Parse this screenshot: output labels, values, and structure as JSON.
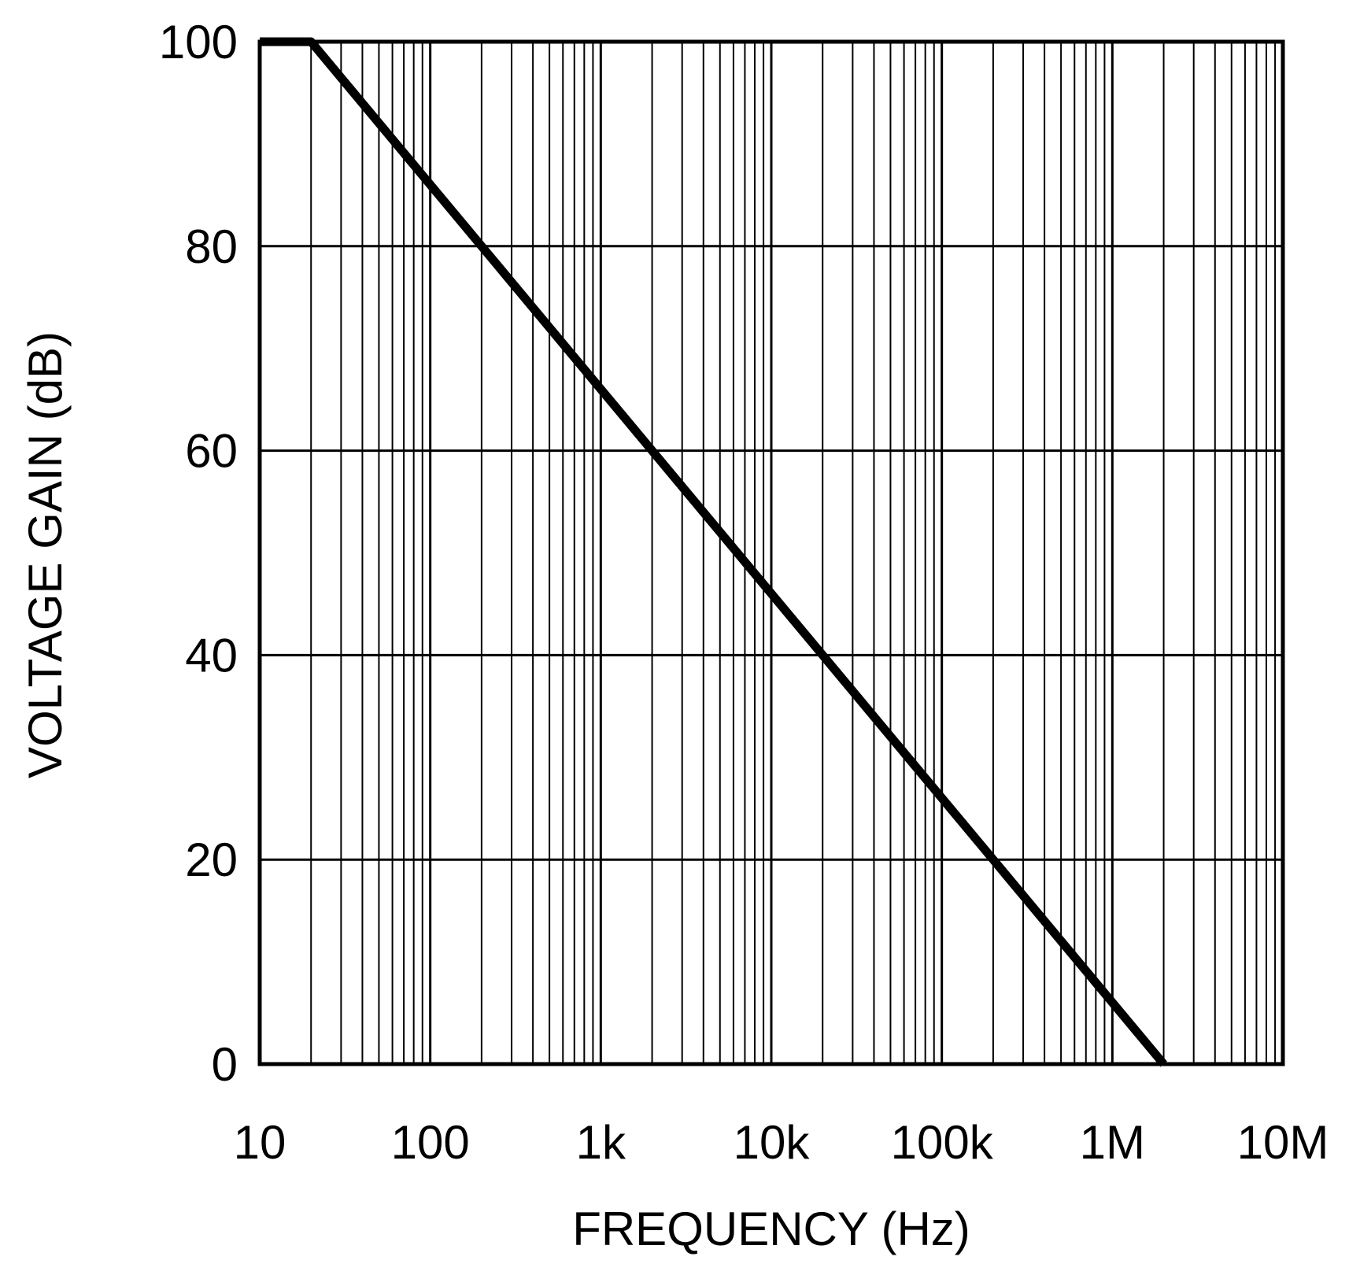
{
  "chart_data": {
    "type": "line",
    "title": "",
    "xlabel": "FREQUENCY (Hz)",
    "ylabel": "VOLTAGE GAIN (dB)",
    "x_scale": "log",
    "xlim": [
      10,
      10000000
    ],
    "ylim": [
      0,
      100
    ],
    "x_ticks": [
      {
        "value": 10,
        "label": "10"
      },
      {
        "value": 100,
        "label": "100"
      },
      {
        "value": 1000,
        "label": "1k"
      },
      {
        "value": 10000,
        "label": "10k"
      },
      {
        "value": 100000,
        "label": "100k"
      },
      {
        "value": 1000000,
        "label": "1M"
      },
      {
        "value": 10000000,
        "label": "10M"
      }
    ],
    "y_ticks": [
      {
        "value": 0,
        "label": "0"
      },
      {
        "value": 20,
        "label": "20"
      },
      {
        "value": 40,
        "label": "40"
      },
      {
        "value": 60,
        "label": "60"
      },
      {
        "value": 80,
        "label": "80"
      },
      {
        "value": 100,
        "label": "100"
      }
    ],
    "grid": true,
    "legend": "none",
    "series": [
      {
        "x": [
          10,
          20,
          2000000
        ],
        "y": [
          100,
          100,
          0
        ]
      }
    ]
  }
}
